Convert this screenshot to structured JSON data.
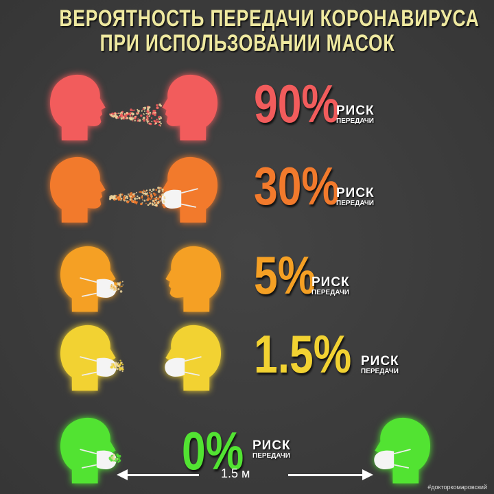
{
  "title": {
    "line1": "ВЕРОЯТНОСТЬ ПЕРЕДАЧИ КОРОНАВИРУСА",
    "line2": "ПРИ ИСПОЛЬЗОВАНИИ МАСОК"
  },
  "rows": [
    {
      "percent": "90%",
      "risk": "РИСК",
      "sub": "ПЕРЕДАЧИ",
      "color": "#f25c5c",
      "speaker_mask": false,
      "listener_mask": false
    },
    {
      "percent": "30%",
      "risk": "РИСК",
      "sub": "ПЕРЕДАЧИ",
      "color": "#f27a2c",
      "speaker_mask": false,
      "listener_mask": true
    },
    {
      "percent": "5%",
      "risk": "РИСК",
      "sub": "ПЕРЕДАЧИ",
      "color": "#f5a024",
      "speaker_mask": true,
      "listener_mask": false
    },
    {
      "percent": "1.5%",
      "risk": "РИСК",
      "sub": "ПЕРЕДАЧИ",
      "color": "#f2d232",
      "speaker_mask": true,
      "listener_mask": true
    },
    {
      "percent": "0%",
      "risk": "РИСК",
      "sub": "ПЕРЕДАЧИ",
      "color": "#52e332",
      "speaker_mask": true,
      "listener_mask": true
    }
  ],
  "distance": "1.5 м",
  "watermark": "#докторкомаровский"
}
